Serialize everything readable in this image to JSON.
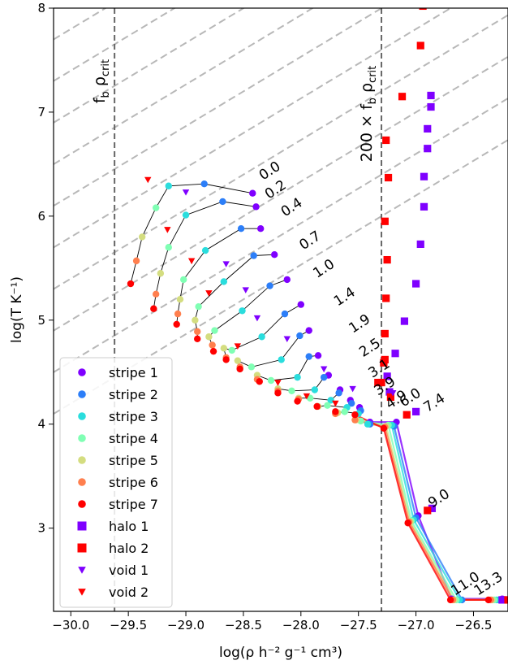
{
  "chart_data": {
    "type": "scatter",
    "xlabel": "log(ρ h⁻² g⁻¹ cm³)",
    "ylabel": "log(T K⁻¹)",
    "xlim": [
      -30.15,
      -26.2
    ],
    "ylim": [
      2.2,
      8.0
    ],
    "xticks": [
      -30.0,
      -29.5,
      -29.0,
      -28.5,
      -28.0,
      -27.5,
      -27.0,
      -26.5
    ],
    "xtick_labels": [
      "−30.0",
      "−29.5",
      "−29.0",
      "−28.5",
      "−28.0",
      "−27.5",
      "−27.0",
      "−26.5"
    ],
    "yticks": [
      3,
      4,
      5,
      6,
      7,
      8
    ],
    "ytick_labels": [
      "3",
      "4",
      "5",
      "6",
      "7",
      "8"
    ],
    "vlines": [
      {
        "x": -29.62,
        "label": "f_b ρ_crit",
        "style": "dashed",
        "color": "#666666"
      },
      {
        "x": -27.3,
        "label": "200 × f_b ρ_crit",
        "style": "dashed",
        "color": "#666666"
      }
    ],
    "diagonal_lines": {
      "slope": 0.6667,
      "intercepts": [
        24.2,
        24.6,
        25.0,
        25.4,
        25.8,
        26.2,
        26.6,
        27.0,
        27.4,
        27.8,
        28.2,
        28.6,
        29.0,
        29.4,
        29.8,
        30.2,
        30.6,
        31.0,
        31.4
      ],
      "color": "#b8b8b8",
      "style": "dashed"
    },
    "grid": false,
    "legend_position": "lower-left",
    "series": [
      {
        "name": "stripe 1",
        "marker": "circle",
        "color": "#7f00ff",
        "x": [
          -28.42,
          -28.39,
          -28.35,
          -28.23,
          -28.12,
          -28.0,
          -27.93,
          -27.85,
          -27.76,
          -27.66,
          -27.57,
          -27.49,
          -27.4,
          -27.17,
          -26.98,
          -26.69,
          -26.25
        ],
        "y": [
          6.22,
          6.09,
          5.88,
          5.63,
          5.39,
          5.15,
          4.9,
          4.66,
          4.47,
          4.33,
          4.23,
          4.16,
          4.02,
          4.02,
          3.12,
          2.32,
          2.32
        ]
      },
      {
        "name": "stripe 2",
        "marker": "circle",
        "color": "#2c7ef8",
        "x": [
          -28.84,
          -28.68,
          -28.52,
          -28.41,
          -28.27,
          -28.14,
          -28.01,
          -27.93,
          -27.8,
          -27.67,
          -27.56,
          -27.48,
          -27.4,
          -27.19,
          -27.0,
          -26.6,
          -26.28
        ],
        "y": [
          6.31,
          6.14,
          5.88,
          5.62,
          5.33,
          5.06,
          4.85,
          4.65,
          4.45,
          4.3,
          4.2,
          4.13,
          4.0,
          3.98,
          3.1,
          2.31,
          2.31
        ]
      },
      {
        "name": "stripe 3",
        "marker": "circle",
        "color": "#2adddd",
        "x": [
          -29.15,
          -29.0,
          -28.83,
          -28.67,
          -28.51,
          -28.34,
          -28.17,
          -28.03,
          -27.88,
          -27.74,
          -27.6,
          -27.5,
          -27.42,
          -27.21,
          -27.02,
          -26.62,
          -26.3
        ],
        "y": [
          6.29,
          6.01,
          5.67,
          5.37,
          5.09,
          4.84,
          4.62,
          4.45,
          4.33,
          4.23,
          4.16,
          4.1,
          4.0,
          3.99,
          3.08,
          2.31,
          2.31
        ]
      },
      {
        "name": "stripe 4",
        "marker": "circle",
        "color": "#80ffb4",
        "x": [
          -29.26,
          -29.15,
          -29.02,
          -28.89,
          -28.75,
          -28.6,
          -28.43,
          -28.26,
          -28.08,
          -27.92,
          -27.77,
          -27.62,
          -27.48,
          -27.24,
          -27.04,
          -26.65,
          -26.32
        ],
        "y": [
          6.08,
          5.7,
          5.39,
          5.13,
          4.9,
          4.71,
          4.55,
          4.42,
          4.32,
          4.25,
          4.18,
          4.12,
          4.03,
          3.99,
          3.07,
          2.31,
          2.31
        ]
      },
      {
        "name": "stripe 5",
        "marker": "circle",
        "color": "#d4dd80",
        "x": [
          -29.38,
          -29.22,
          -29.05,
          -28.92,
          -28.8,
          -28.67,
          -28.55,
          -28.38,
          -28.2,
          -28.02,
          -27.85,
          -27.68,
          -27.52,
          -27.26,
          -27.05,
          -26.67,
          -26.34
        ],
        "y": [
          5.8,
          5.45,
          5.2,
          5.0,
          4.84,
          4.73,
          4.61,
          4.47,
          4.34,
          4.25,
          4.17,
          4.11,
          4.04,
          3.98,
          3.06,
          2.31,
          2.31
        ]
      },
      {
        "name": "stripe 6",
        "marker": "circle",
        "color": "#ff7f4e",
        "x": [
          -29.43,
          -29.26,
          -29.07,
          -28.9,
          -28.77,
          -28.65,
          -28.53,
          -28.38,
          -28.2,
          -28.02,
          -27.86,
          -27.7,
          -27.53,
          -27.27,
          -27.06,
          -26.68,
          -26.35
        ],
        "y": [
          5.57,
          5.25,
          5.06,
          4.89,
          4.76,
          4.64,
          4.55,
          4.43,
          4.32,
          4.24,
          4.17,
          4.1,
          4.04,
          3.97,
          3.06,
          2.31,
          2.31
        ]
      },
      {
        "name": "stripe 7",
        "marker": "circle",
        "color": "#ff0000",
        "x": [
          -29.48,
          -29.28,
          -29.08,
          -28.9,
          -28.76,
          -28.65,
          -28.53,
          -28.36,
          -28.2,
          -28.03,
          -27.86,
          -27.7,
          -27.53,
          -27.28,
          -27.07,
          -26.7,
          -26.37
        ],
        "y": [
          5.35,
          5.11,
          4.96,
          4.82,
          4.7,
          4.62,
          4.53,
          4.41,
          4.3,
          4.22,
          4.17,
          4.12,
          4.09,
          3.96,
          3.05,
          2.31,
          2.31
        ]
      },
      {
        "name": "halo 1",
        "marker": "square",
        "color": "#7f00ff",
        "x": [
          -26.87,
          -26.87,
          -26.9,
          -26.9,
          -26.93,
          -26.93,
          -26.96,
          -27.0,
          -27.1,
          -27.18,
          -27.25,
          -27.23,
          -27.0,
          -26.86,
          -26.25
        ],
        "y": [
          7.16,
          7.05,
          6.84,
          6.65,
          6.38,
          6.09,
          5.73,
          5.35,
          4.99,
          4.68,
          4.46,
          4.31,
          4.12,
          3.19,
          2.31
        ]
      },
      {
        "name": "halo 2",
        "marker": "square",
        "color": "#ff0000",
        "x": [
          -26.94,
          -26.96,
          -27.12,
          -27.26,
          -27.24,
          -27.27,
          -27.25,
          -27.26,
          -27.27,
          -27.27,
          -27.28,
          -27.33,
          -27.3,
          -27.22,
          -27.08,
          -26.9,
          -26.2
        ],
        "y": [
          8.02,
          7.64,
          7.15,
          6.73,
          6.37,
          5.95,
          5.58,
          5.21,
          4.87,
          4.62,
          4.59,
          4.4,
          4.4,
          4.26,
          4.09,
          3.17,
          2.31
        ]
      },
      {
        "name": "void 1",
        "marker": "triangle-down",
        "color": "#7f00ff",
        "x": [
          -29.0,
          -28.65,
          -28.48,
          -28.38,
          -28.12,
          -27.8,
          -27.55,
          -27.2
        ],
        "y": [
          6.23,
          5.54,
          5.29,
          5.02,
          4.82,
          4.53,
          4.34,
          4.3
        ]
      },
      {
        "name": "void 2",
        "marker": "triangle-down",
        "color": "#ff0000",
        "x": [
          -29.33,
          -29.16,
          -28.95,
          -28.8,
          -28.55,
          -28.2,
          -27.95,
          -27.7
        ],
        "y": [
          6.35,
          5.87,
          5.57,
          5.26,
          4.75,
          4.4,
          4.27,
          4.2
        ]
      }
    ],
    "redshift_labels": [
      {
        "text": "0.0",
        "x": -28.25,
        "y": 6.4
      },
      {
        "text": "0.2",
        "x": -28.2,
        "y": 6.22
      },
      {
        "text": "0.4",
        "x": -28.06,
        "y": 6.05
      },
      {
        "text": "0.7",
        "x": -27.9,
        "y": 5.73
      },
      {
        "text": "1.0",
        "x": -27.78,
        "y": 5.46
      },
      {
        "text": "1.4",
        "x": -27.6,
        "y": 5.19
      },
      {
        "text": "1.9",
        "x": -27.47,
        "y": 4.93
      },
      {
        "text": "2.5",
        "x": -27.38,
        "y": 4.7
      },
      {
        "text": "3.1",
        "x": -27.3,
        "y": 4.5
      },
      {
        "text": "3.9",
        "x": -27.25,
        "y": 4.33
      },
      {
        "text": "4.9",
        "x": -27.15,
        "y": 4.2
      },
      {
        "text": "6.0",
        "x": -27.03,
        "y": 4.22
      },
      {
        "text": "7.4",
        "x": -26.82,
        "y": 4.17
      },
      {
        "text": "9.0",
        "x": -26.78,
        "y": 3.25
      },
      {
        "text": "11.0",
        "x": -26.55,
        "y": 2.43
      },
      {
        "text": "13.3",
        "x": -26.35,
        "y": 2.43
      }
    ]
  }
}
